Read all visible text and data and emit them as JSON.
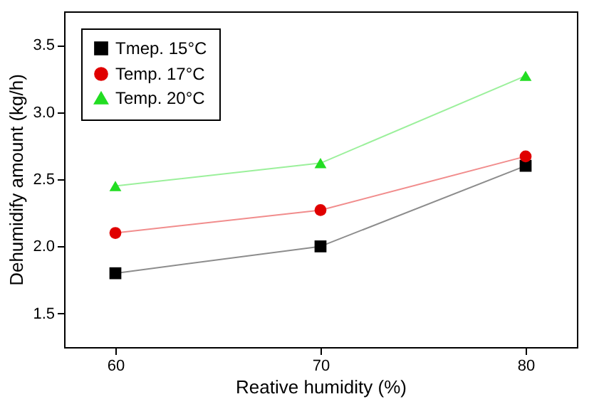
{
  "chart_data": {
    "type": "line",
    "xlabel": "Reative humidity (%)",
    "ylabel": "Dehumidify amount (kg/h)",
    "x": [
      60,
      70,
      80
    ],
    "series": [
      {
        "name": "Tmep. 15°C",
        "color": "#000000",
        "marker": "square",
        "values": [
          1.8,
          2.0,
          2.6
        ]
      },
      {
        "name": "Temp. 17°C",
        "color": "#e00000",
        "marker": "circle",
        "values": [
          2.1,
          2.27,
          2.67
        ]
      },
      {
        "name": "Temp. 20°C",
        "color": "#22dd22",
        "marker": "triangle",
        "values": [
          2.45,
          2.62,
          3.27
        ]
      }
    ],
    "xlim": [
      57.5,
      82.5
    ],
    "xticks": [
      60,
      70,
      80
    ],
    "ylim": [
      1.25,
      3.75
    ],
    "yticks": [
      1.5,
      {
        "value": 2,
        "label": "2.0"
      },
      2.5,
      {
        "value": 3,
        "label": "3.0"
      },
      3.5
    ],
    "grid": false,
    "legend": "top left",
    "line_style": "solid"
  }
}
